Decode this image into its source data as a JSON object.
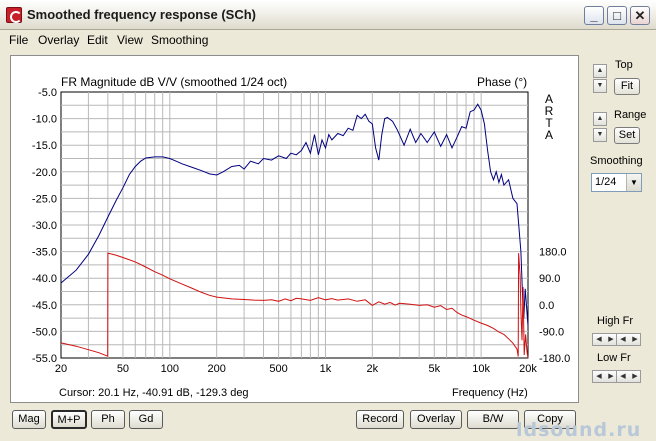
{
  "window": {
    "title": "Smoothed frequency response (SCh)",
    "controls": {
      "minimize": "_",
      "maximize": "□",
      "close": "✕"
    }
  },
  "menu": [
    "File",
    "Overlay",
    "Edit",
    "View",
    "Smoothing"
  ],
  "chart_data": {
    "type": "line",
    "title": "FR Magnitude dB V/V (smoothed 1/24 oct)",
    "phase_label": "Phase (°)",
    "side_label": "ARTA",
    "xlabel": "Frequency (Hz)",
    "x_scale": "log",
    "xlim": [
      20,
      20000
    ],
    "ylim": [
      -55,
      -5
    ],
    "y2lim": [
      -180,
      180
    ],
    "x_ticks": [
      {
        "value": 20,
        "label": "20"
      },
      {
        "value": 50,
        "label": "50"
      },
      {
        "value": 100,
        "label": "100"
      },
      {
        "value": 200,
        "label": "200"
      },
      {
        "value": 500,
        "label": "500"
      },
      {
        "value": 1000,
        "label": "1k"
      },
      {
        "value": 2000,
        "label": "2k"
      },
      {
        "value": 5000,
        "label": "5k"
      },
      {
        "value": 10000,
        "label": "10k"
      },
      {
        "value": 20000,
        "label": "20k"
      }
    ],
    "y_ticks": [
      "-5.0",
      "-10.0",
      "-15.0",
      "-20.0",
      "-25.0",
      "-30.0",
      "-35.0",
      "-40.0",
      "-45.0",
      "-50.0",
      "-55.0"
    ],
    "y2_ticks": [
      "180.0",
      "90.0",
      "0.0",
      "-90.0",
      "-180.0"
    ],
    "cursor_text": "Cursor: 20.1 Hz, -40.91 dB, -129.3 deg",
    "grid": true,
    "colors": {
      "magnitude": "#000080",
      "phase": "#d01010"
    },
    "series": [
      {
        "name": "magnitude",
        "axis": "left",
        "points": [
          [
            20,
            -40.9
          ],
          [
            25,
            -38.5
          ],
          [
            30,
            -35.5
          ],
          [
            35,
            -32
          ],
          [
            40,
            -28.5
          ],
          [
            45,
            -25.5
          ],
          [
            50,
            -23
          ],
          [
            55,
            -20.5
          ],
          [
            60,
            -19
          ],
          [
            65,
            -18
          ],
          [
            70,
            -17.4
          ],
          [
            80,
            -17.2
          ],
          [
            90,
            -17.2
          ],
          [
            100,
            -17.5
          ],
          [
            110,
            -18
          ],
          [
            120,
            -18.5
          ],
          [
            140,
            -19.2
          ],
          [
            160,
            -19.8
          ],
          [
            180,
            -20.4
          ],
          [
            200,
            -20.6
          ],
          [
            220,
            -20
          ],
          [
            250,
            -19
          ],
          [
            280,
            -18.8
          ],
          [
            300,
            -19.5
          ],
          [
            330,
            -18
          ],
          [
            370,
            -18.5
          ],
          [
            400,
            -17.5
          ],
          [
            450,
            -17.8
          ],
          [
            500,
            -17
          ],
          [
            560,
            -17.5
          ],
          [
            600,
            -16.5
          ],
          [
            650,
            -16.8
          ],
          [
            700,
            -16
          ],
          [
            750,
            -14.5
          ],
          [
            800,
            -16.5
          ],
          [
            850,
            -13
          ],
          [
            900,
            -16.8
          ],
          [
            950,
            -14
          ],
          [
            1000,
            -15.5
          ],
          [
            1050,
            -13
          ],
          [
            1100,
            -14
          ],
          [
            1200,
            -12.8
          ],
          [
            1300,
            -13.2
          ],
          [
            1400,
            -11.8
          ],
          [
            1500,
            -12.2
          ],
          [
            1600,
            -9.4
          ],
          [
            1700,
            -10
          ],
          [
            1800,
            -9.2
          ],
          [
            1900,
            -10.5
          ],
          [
            2000,
            -11
          ],
          [
            2100,
            -15.5
          ],
          [
            2200,
            -17.8
          ],
          [
            2300,
            -13
          ],
          [
            2400,
            -10
          ],
          [
            2500,
            -9.8
          ],
          [
            2700,
            -10.5
          ],
          [
            2900,
            -12.2
          ],
          [
            3200,
            -15
          ],
          [
            3500,
            -12
          ],
          [
            3800,
            -14.5
          ],
          [
            4100,
            -12.8
          ],
          [
            4500,
            -14.5
          ],
          [
            5000,
            -12.5
          ],
          [
            5500,
            -15.2
          ],
          [
            6000,
            -13
          ],
          [
            6500,
            -15.5
          ],
          [
            7000,
            -13.5
          ],
          [
            7500,
            -11.5
          ],
          [
            8000,
            -11.8
          ],
          [
            8500,
            -8.7
          ],
          [
            9000,
            -8.4
          ],
          [
            9500,
            -7.3
          ],
          [
            10000,
            -8.4
          ],
          [
            10500,
            -11
          ],
          [
            11000,
            -16
          ],
          [
            11500,
            -20
          ],
          [
            12000,
            -21.5
          ],
          [
            12500,
            -20
          ],
          [
            13000,
            -22
          ],
          [
            13500,
            -20.5
          ],
          [
            14000,
            -22.5
          ],
          [
            15000,
            -21.5
          ],
          [
            16000,
            -25
          ],
          [
            17000,
            -26
          ],
          [
            18000,
            -35
          ],
          [
            18500,
            -44
          ],
          [
            18800,
            -47.5
          ],
          [
            19200,
            -42
          ],
          [
            19600,
            -45.5
          ],
          [
            20000,
            -49
          ]
        ]
      },
      {
        "name": "phase",
        "axis": "right",
        "points": [
          [
            20,
            -129
          ],
          [
            25,
            -140
          ],
          [
            30,
            -152
          ],
          [
            35,
            -162
          ],
          [
            39.9,
            -174
          ],
          [
            40,
            175
          ],
          [
            45,
            168
          ],
          [
            50,
            160
          ],
          [
            60,
            145
          ],
          [
            70,
            128
          ],
          [
            80,
            112
          ],
          [
            90,
            100
          ],
          [
            100,
            88
          ],
          [
            120,
            70
          ],
          [
            140,
            55
          ],
          [
            160,
            42
          ],
          [
            180,
            32
          ],
          [
            200,
            26
          ],
          [
            250,
            20
          ],
          [
            300,
            18
          ],
          [
            350,
            16
          ],
          [
            400,
            15
          ],
          [
            450,
            17
          ],
          [
            500,
            12
          ],
          [
            550,
            20
          ],
          [
            600,
            14
          ],
          [
            650,
            22
          ],
          [
            700,
            20
          ],
          [
            800,
            15
          ],
          [
            900,
            24
          ],
          [
            1000,
            17
          ],
          [
            1100,
            21
          ],
          [
            1200,
            16
          ],
          [
            1400,
            20
          ],
          [
            1600,
            12
          ],
          [
            1800,
            17
          ],
          [
            2000,
            -2
          ],
          [
            2200,
            10
          ],
          [
            2400,
            2
          ],
          [
            2600,
            8
          ],
          [
            2800,
            -1
          ],
          [
            3000,
            5
          ],
          [
            3500,
            2
          ],
          [
            4000,
            -2
          ],
          [
            4500,
            0
          ],
          [
            5000,
            -8
          ],
          [
            5500,
            -3
          ],
          [
            6000,
            -16
          ],
          [
            6500,
            -12
          ],
          [
            7000,
            -26
          ],
          [
            7500,
            -35
          ],
          [
            8000,
            -40
          ],
          [
            9000,
            -52
          ],
          [
            10000,
            -62
          ],
          [
            11000,
            -70
          ],
          [
            12000,
            -80
          ],
          [
            13000,
            -92
          ],
          [
            14000,
            -100
          ],
          [
            15000,
            -115
          ],
          [
            16000,
            -130
          ],
          [
            17000,
            -150
          ],
          [
            17300,
            -175
          ],
          [
            17400,
            175
          ],
          [
            17800,
            100
          ],
          [
            18000,
            -20
          ],
          [
            18300,
            -120
          ],
          [
            18600,
            60
          ],
          [
            18900,
            -170
          ],
          [
            19300,
            -100
          ],
          [
            19700,
            -160
          ],
          [
            20000,
            -180
          ]
        ]
      }
    ]
  },
  "right_panel": {
    "top_label": "Top",
    "fit_button": "Fit",
    "range_label": "Range",
    "set_button": "Set",
    "smoothing_label": "Smoothing",
    "smoothing_value": "1/24",
    "high_fr_label": "High Fr",
    "low_fr_label": "Low Fr"
  },
  "bottom_buttons": {
    "mag": "Mag",
    "mp": "M+P",
    "ph": "Ph",
    "gd": "Gd",
    "record": "Record",
    "overlay": "Overlay",
    "bw": "B/W",
    "copy": "Copy"
  },
  "watermark": "ldsound.ru"
}
